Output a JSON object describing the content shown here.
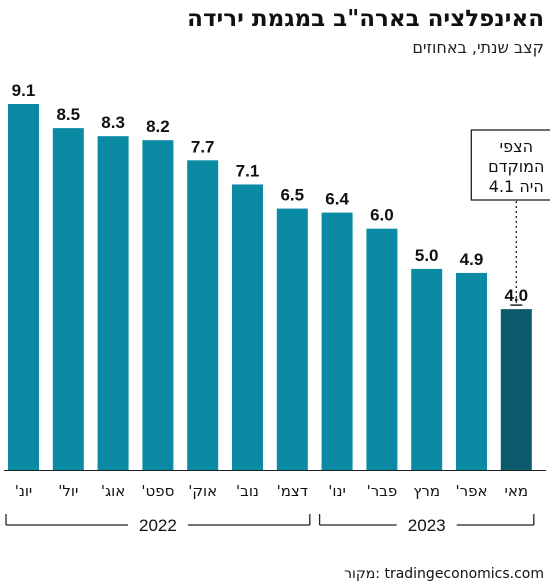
{
  "title": "האינפלציה בארה\"ב במגמת ירידה",
  "subtitle": "קצב שנתי, באחוזים",
  "source": "tradingeconomics.com :מקור",
  "colors": {
    "bar": "#0a8aa3",
    "bar_highlight": "#0b5b6c",
    "text": "#111111",
    "axis": "#222222"
  },
  "chart_data": {
    "type": "bar",
    "categories": [
      "יונ'",
      "יול'",
      "אוג'",
      "ספט'",
      "אוק'",
      "נוב'",
      "דצמ'",
      "ינו'",
      "פבר'",
      "מרץ",
      "אפר'",
      "מאי"
    ],
    "values": [
      9.1,
      8.5,
      8.3,
      8.2,
      7.7,
      7.1,
      6.5,
      6.4,
      6.0,
      5.0,
      4.9,
      4.0
    ],
    "value_labels": [
      "9.1",
      "8.5",
      "8.3",
      "8.2",
      "7.7",
      "7.1",
      "6.5",
      "6.4",
      "6.0",
      "5.0",
      "4.9",
      "4.0"
    ],
    "highlight_index": 11,
    "ylim": [
      0,
      9.1
    ],
    "grid": false,
    "year_groups": [
      {
        "label": "2022",
        "from_index": 0,
        "to_index": 6
      },
      {
        "label": "2023",
        "from_index": 7,
        "to_index": 11
      }
    ],
    "annotation": {
      "lines": [
        "הצפי",
        "המוקדם",
        "היה 4.1"
      ],
      "value": 4.1,
      "bar_index": 11
    }
  }
}
